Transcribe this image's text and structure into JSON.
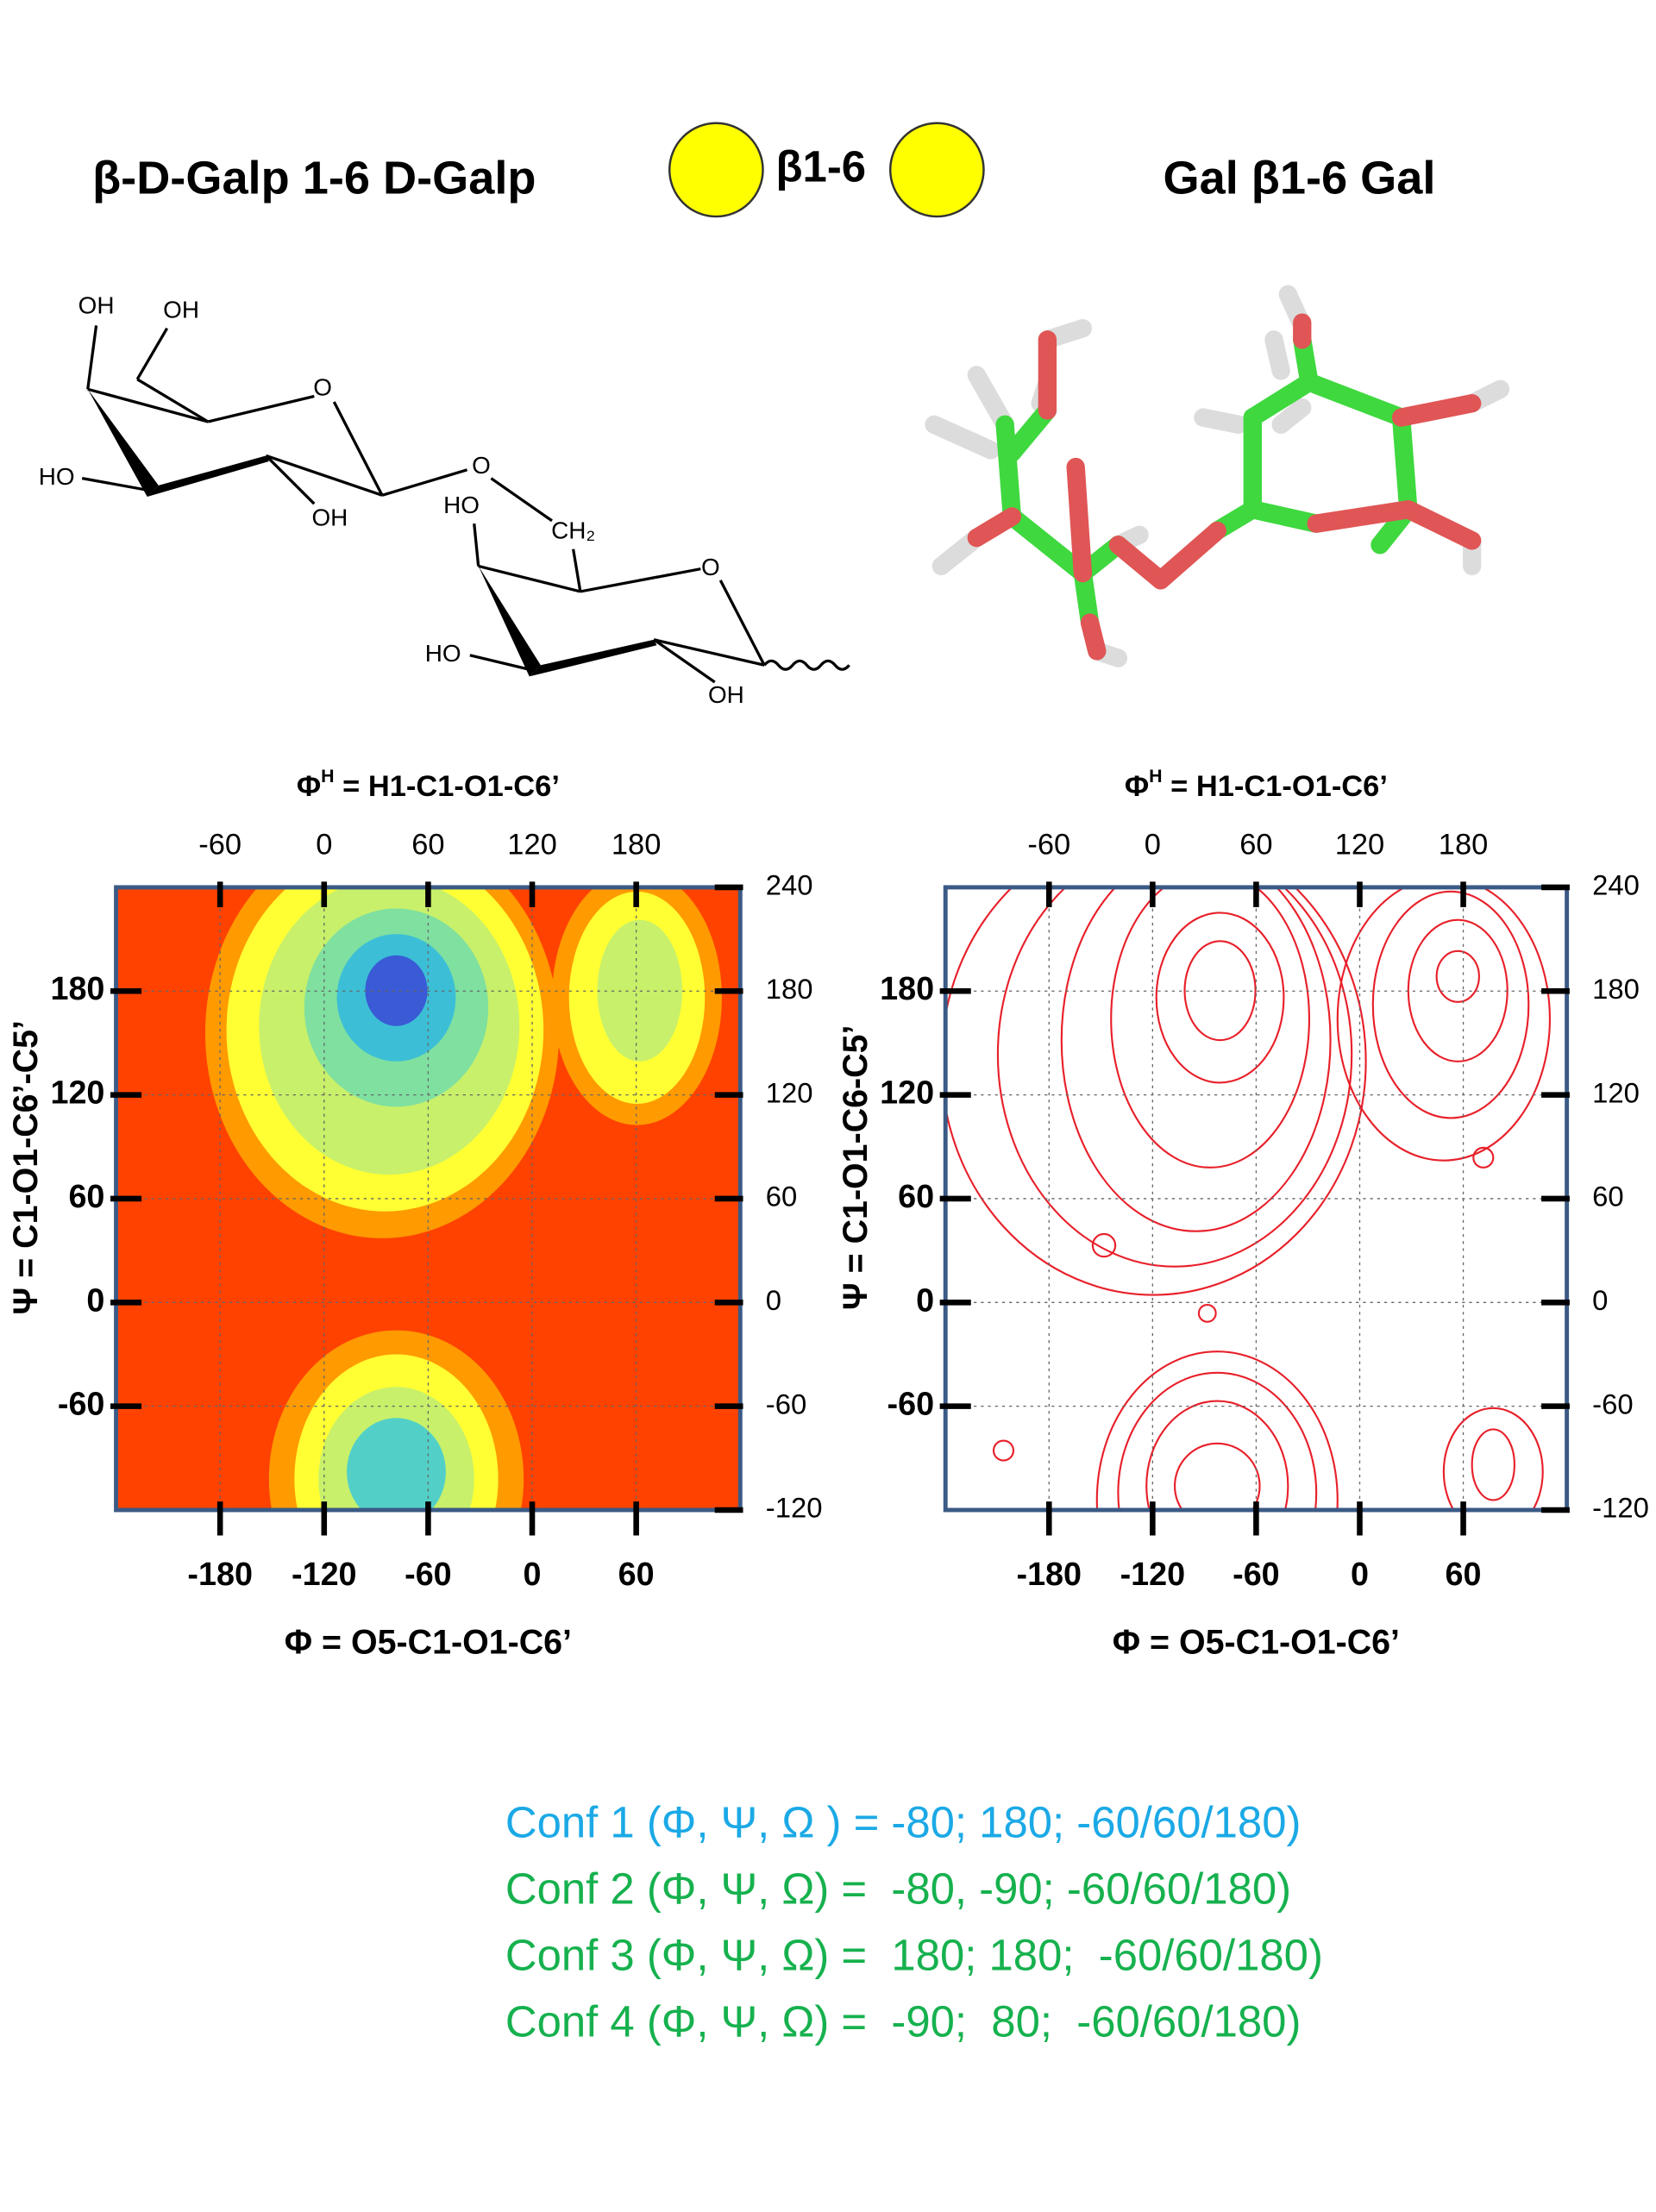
{
  "header": {
    "left_title": "β-D-Galp 1-6 D-Galp",
    "link_label": "β1-6",
    "right_title": "Gal β1-6 Gal"
  },
  "structure": {
    "labels": [
      "OH",
      "OH",
      "O",
      "HO",
      "OH",
      "O",
      "HO",
      "CH₂",
      "O",
      "HO",
      "OH"
    ]
  },
  "plots": [
    {
      "top_label": {
        "symbol": "Φ",
        "superscript": "H",
        "rest": " = H1-C1-O1-C6’"
      },
      "x_label": "Φ = O5-C1-O1-C6’",
      "y_label": "Ψ = C1-O1-C6’-C5’",
      "xlim": [
        -240,
        120
      ],
      "xticks": [
        -180,
        -120,
        -60,
        0,
        60
      ],
      "top_xlim": [
        -120,
        240
      ],
      "top_xticks": [
        -60,
        0,
        60,
        120,
        180
      ],
      "ylim": [
        -120,
        240
      ],
      "yticks": [
        -60,
        0,
        60,
        120,
        180
      ],
      "y2lim": [
        -120,
        240
      ],
      "y2ticks": [
        -120,
        -60,
        0,
        60,
        120,
        180,
        240
      ],
      "grid": true
    },
    {
      "top_label": {
        "symbol": "Φ",
        "superscript": "H",
        "rest": " = H1-C1-O1-C6’"
      },
      "x_label": "Φ = O5-C1-O1-C6’",
      "y_label": "Ψ = C1-O1-C6-C5’",
      "xlim": [
        -240,
        120
      ],
      "xticks": [
        -180,
        -120,
        -60,
        0,
        60
      ],
      "top_xlim": [
        -120,
        240
      ],
      "top_xticks": [
        -60,
        0,
        60,
        120,
        180
      ],
      "ylim": [
        -120,
        240
      ],
      "yticks": [
        -60,
        0,
        60,
        120,
        180
      ],
      "y2lim": [
        -120,
        240
      ],
      "y2ticks": [
        -120,
        -60,
        0,
        60,
        120,
        180,
        240
      ],
      "grid": true
    }
  ],
  "conformations": [
    {
      "text": "Conf 1 (Φ, Ψ, Ω ) = -80; 180; -60/60/180)",
      "color": "#1ba9e6"
    },
    {
      "text": "Conf 2 (Φ, Ψ, Ω) =  -80, -90; -60/60/180)",
      "color": "#16b14e"
    },
    {
      "text": "Conf 3 (Φ, Ψ, Ω) =  180; 180;  -60/60/180)",
      "color": "#16b14e"
    },
    {
      "text": "Conf 4 (Φ, Ψ, Ω) =  -90;  80;  -60/60/180)",
      "color": "#16b14e"
    }
  ]
}
